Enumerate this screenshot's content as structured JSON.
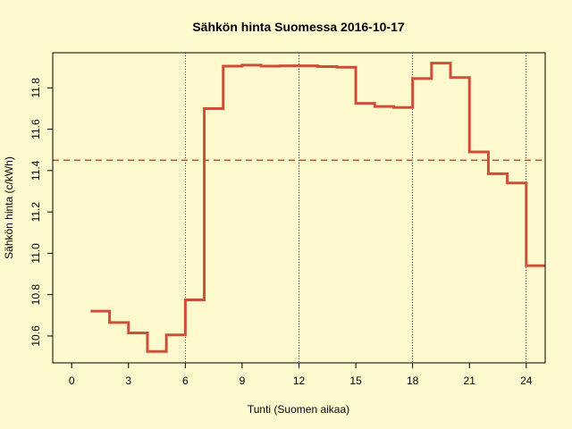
{
  "chart_data": {
    "type": "line",
    "style": "step",
    "title": "Sähkön hinta Suomessa 2016-10-17",
    "xlabel": "Tunti (Suomen aikaa)",
    "ylabel": "Sähkön hinta (c/kWh)",
    "xlim": [
      -1,
      25
    ],
    "ylim": [
      10.47,
      11.97
    ],
    "xticks": [
      0,
      3,
      6,
      9,
      12,
      15,
      18,
      21,
      24
    ],
    "yticks": [
      10.6,
      10.8,
      11.0,
      11.2,
      11.4,
      11.6,
      11.8
    ],
    "ytick_labels": [
      "10.6",
      "10.8",
      "11.0",
      "11.2",
      "11.4",
      "11.6",
      "11.8"
    ],
    "vlines": [
      6,
      12,
      18,
      24
    ],
    "mean_line": 11.45,
    "grid": false,
    "colors": {
      "background": "#fffacd",
      "series": "#cd4f39",
      "mean": "#cd4f39"
    },
    "series": [
      {
        "x": [
          1,
          2,
          3,
          4,
          5,
          6,
          7,
          8,
          9,
          10,
          11,
          12,
          13,
          14,
          15,
          16,
          17,
          18,
          19,
          20,
          21,
          22,
          23,
          24,
          25
        ],
        "values": [
          10.72,
          10.665,
          10.615,
          10.525,
          10.605,
          10.775,
          11.7,
          11.905,
          11.91,
          11.905,
          11.907,
          11.907,
          11.903,
          11.9,
          11.725,
          11.71,
          11.705,
          11.845,
          11.92,
          11.85,
          11.49,
          11.385,
          11.34,
          10.94,
          10.94
        ]
      }
    ]
  }
}
